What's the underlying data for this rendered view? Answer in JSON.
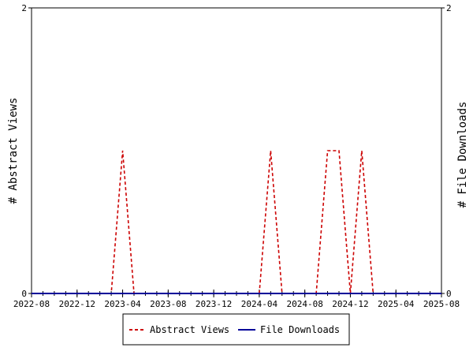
{
  "chart_data": {
    "type": "line",
    "title": "",
    "ylabel_left": "# Abstract Views",
    "ylabel_right": "# File Downloads",
    "xlabel": "",
    "x_ticks": [
      "2022-08",
      "2022-12",
      "2023-04",
      "2023-08",
      "2023-12",
      "2024-04",
      "2024-08",
      "2024-12",
      "2025-04",
      "2025-08"
    ],
    "x_range": [
      "2022-08",
      "2025-08"
    ],
    "ylim_left": [
      0,
      2
    ],
    "ylim_right": [
      0,
      2
    ],
    "y_ticks_left": [
      "0",
      "2"
    ],
    "y_ticks_right": [
      "0",
      "2"
    ],
    "grid": false,
    "legend_position": "bottom-center",
    "series": [
      {
        "name": "Abstract Views",
        "axis": "left",
        "color": "#cc0000",
        "style": "dashed",
        "points": [
          [
            "2022-08",
            0
          ],
          [
            "2023-03",
            0
          ],
          [
            "2023-04",
            1
          ],
          [
            "2023-05",
            0
          ],
          [
            "2024-04",
            0
          ],
          [
            "2024-05",
            1
          ],
          [
            "2024-06",
            0
          ],
          [
            "2024-09",
            0
          ],
          [
            "2024-10",
            1
          ],
          [
            "2024-11",
            1
          ],
          [
            "2024-12",
            0
          ],
          [
            "2025-01",
            1
          ],
          [
            "2025-02",
            0
          ],
          [
            "2025-08",
            0
          ]
        ]
      },
      {
        "name": "File Downloads",
        "axis": "right",
        "color": "#000099",
        "style": "solid",
        "points": [
          [
            "2022-08",
            0
          ],
          [
            "2025-08",
            0
          ]
        ]
      }
    ]
  }
}
